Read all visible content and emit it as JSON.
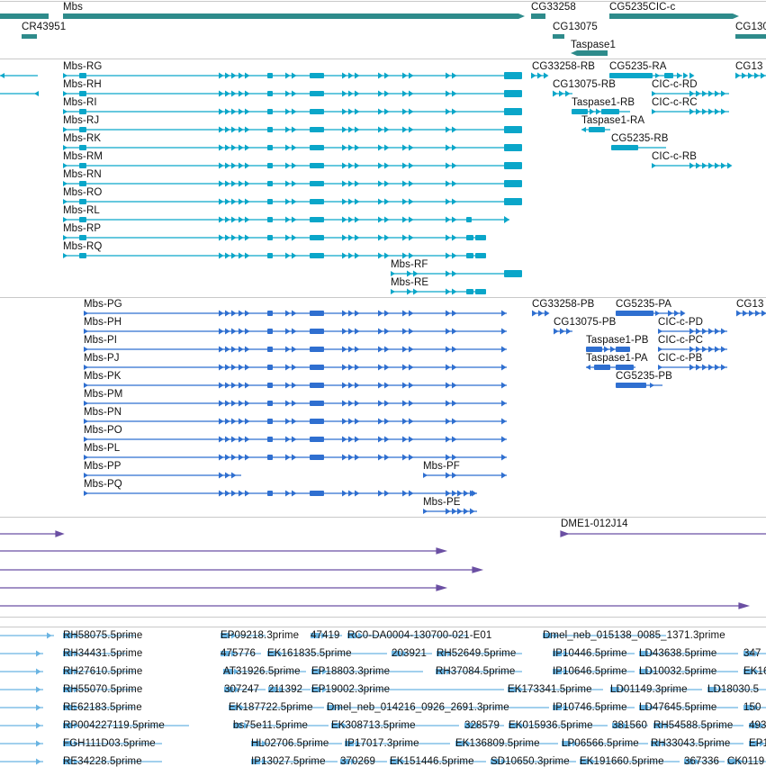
{
  "browser": {
    "colors": {
      "gene": "#2e8b8b",
      "mrna": "#0aa6c9",
      "protein": "#2f6fd0",
      "cdna": "#6b4fa3",
      "est": "#6ab4e2",
      "separator": "#c9c9c9"
    },
    "tracks": {
      "genes": {
        "labels": [
          "Mbs",
          "CR43951",
          "CG33258",
          "CG13075",
          "CG5235CIC-c",
          "Taspase1",
          "CG130"
        ]
      },
      "transcripts": {
        "labels": [
          "Mbs-RG",
          "Mbs-RH",
          "Mbs-RI",
          "Mbs-RJ",
          "Mbs-RK",
          "Mbs-RM",
          "Mbs-RN",
          "Mbs-RO",
          "Mbs-RL",
          "Mbs-RP",
          "Mbs-RQ",
          "Mbs-RF",
          "Mbs-RE",
          "CG33258-RB",
          "CG5235-RA",
          "CG13",
          "CG13075-RB",
          "CIC-c-RD",
          "Taspase1-RB",
          "CIC-c-RC",
          "Taspase1-RA",
          "CG5235-RB",
          "CIC-c-RB"
        ]
      },
      "proteins": {
        "labels": [
          "Mbs-PG",
          "Mbs-PH",
          "Mbs-PI",
          "Mbs-PJ",
          "Mbs-PK",
          "Mbs-PM",
          "Mbs-PN",
          "Mbs-PO",
          "Mbs-PL",
          "Mbs-PP",
          "Mbs-PQ",
          "Mbs-PF",
          "Mbs-PE",
          "CG33258-PB",
          "CG5235-PA",
          "CG13",
          "CG13075-PB",
          "CIC-c-PD",
          "Taspase1-PB",
          "CIC-c-PC",
          "Taspase1-PA",
          "CIC-c-PB",
          "CG5235-PB"
        ]
      },
      "cdna_clones": {
        "labels": [
          "DME1-012J14"
        ]
      },
      "ests": {
        "labels": [
          "RH58075.5prime",
          "EP09218.3prime",
          "47419",
          "RC0-DA0004-130700-021-E01",
          "Dmel_neb_015138_0085_1371.3prime",
          "RH34431.5prime",
          "475776",
          "EK161835.5prime",
          "203921",
          "RH52649.5prime",
          "IP10446.5prime",
          "LD43638.5prime",
          "347",
          "RH27610.5prime",
          "AT31926.5prime",
          "EP18803.3prime",
          "RH37084.5prime",
          "IP10646.5prime",
          "LD10032.5prime",
          "EK16",
          "RH55070.5prime",
          "307247",
          "211392",
          "EP19002.3prime",
          "EK173341.5prime",
          "LD01149.3prime",
          "LD18030.5",
          "RE62183.5prime",
          "EK187722.5prime",
          "Dmel_neb_014216_0926_2691.3prime",
          "IP10746.5prime",
          "LD47645.5prime",
          "150",
          "RP004227119.5prime",
          "bs75e11.5prime",
          "EK308713.5prime",
          "328579",
          "EK015936.5prime",
          "381560",
          "RH54588.5prime",
          "493",
          "FGH111D03.5prime",
          "HL02706.5prime",
          "IP17017.3prime",
          "EK136809.5prime",
          "LP06566.5prime",
          "RH33043.5prime",
          "EP1",
          "RE34228.5prime",
          "IP13027.5prime",
          "370269",
          "EK151446.5prime",
          "SD10650.3prime",
          "EK191660.5prime",
          "367336",
          "CK0119"
        ]
      }
    }
  }
}
